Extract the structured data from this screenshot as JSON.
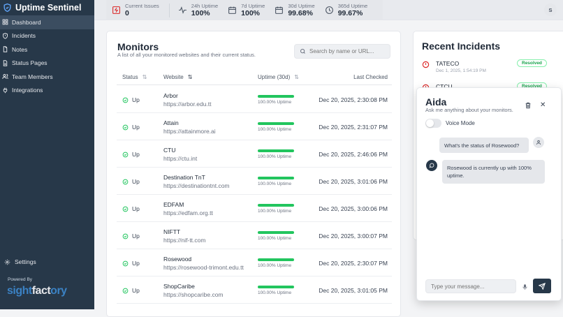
{
  "app": {
    "title": "Uptime Sentinel"
  },
  "sidebar": {
    "items": [
      {
        "label": "Dashboard",
        "icon": "grid-icon",
        "active": true
      },
      {
        "label": "Incidents",
        "icon": "shield-alert-icon"
      },
      {
        "label": "Notes",
        "icon": "file-icon"
      },
      {
        "label": "Status Pages",
        "icon": "file-text-icon"
      },
      {
        "label": "Team Members",
        "icon": "users-icon"
      },
      {
        "label": "Integrations",
        "icon": "plug-icon"
      }
    ],
    "settings": "Settings",
    "powered_by": "Powered By",
    "logo_a": "sight",
    "logo_b": "fact",
    "logo_c": "ory"
  },
  "stats": [
    {
      "label": "Current Issues",
      "value": "0",
      "icon": "alert-icon"
    },
    {
      "label": "24h Uptime",
      "value": "100%",
      "icon": "activity-icon"
    },
    {
      "label": "7d Uptime",
      "value": "100%",
      "icon": "calendar-icon"
    },
    {
      "label": "30d Uptime",
      "value": "99.68%",
      "icon": "calendar-icon"
    },
    {
      "label": "365d Uptime",
      "value": "99.67%",
      "icon": "clock-icon"
    }
  ],
  "user": {
    "initial": "S"
  },
  "monitors": {
    "title": "Monitors",
    "subtitle": "A list of all your monitored websites and their current status.",
    "search_placeholder": "Search by name or URL...",
    "columns": [
      "Status",
      "Website",
      "Uptime (30d)",
      "Last Checked"
    ],
    "sort_glyph": "⇅",
    "rows": [
      {
        "status": "Up",
        "name": "Arbor",
        "url": "https://arbor.edu.tt",
        "uptime": "100.00% Uptime",
        "checked": "Dec 20, 2025, 2:30:08 PM"
      },
      {
        "status": "Up",
        "name": "Attain",
        "url": "https://attainmore.ai",
        "uptime": "100.00% Uptime",
        "checked": "Dec 20, 2025, 2:31:07 PM"
      },
      {
        "status": "Up",
        "name": "CTU",
        "url": "https://ctu.int",
        "uptime": "100.00% Uptime",
        "checked": "Dec 20, 2025, 2:46:06 PM"
      },
      {
        "status": "Up",
        "name": "Destination TnT",
        "url": "https://destinationtnt.com",
        "uptime": "100.00% Uptime",
        "checked": "Dec 20, 2025, 3:01:06 PM"
      },
      {
        "status": "Up",
        "name": "EDFAM",
        "url": "https://edfam.org.tt",
        "uptime": "100.00% Uptime",
        "checked": "Dec 20, 2025, 3:00:06 PM"
      },
      {
        "status": "Up",
        "name": "NIFTT",
        "url": "https://nif-tt.com",
        "uptime": "100.00% Uptime",
        "checked": "Dec 20, 2025, 3:00:07 PM"
      },
      {
        "status": "Up",
        "name": "Rosewood",
        "url": "https://rosewood-trimont.edu.tt",
        "uptime": "100.00% Uptime",
        "checked": "Dec 20, 2025, 2:30:07 PM"
      },
      {
        "status": "Up",
        "name": "ShopCaribe",
        "url": "https://shopcaribe.com",
        "uptime": "100.00% Uptime",
        "checked": "Dec 20, 2025, 3:01:05 PM"
      }
    ]
  },
  "incidents": {
    "title": "Recent Incidents",
    "items": [
      {
        "name": "TATECO",
        "date": "Dec 1, 2025, 1:54:19 PM",
        "badge": "Resolved"
      },
      {
        "name": "CTCU",
        "date": "",
        "badge": "Resolved"
      }
    ]
  },
  "chat": {
    "title": "Aida",
    "subtitle": "Ask me anything about your monitors.",
    "voice_label": "Voice Mode",
    "messages": [
      {
        "role": "user",
        "text": "What's the status of Rosewood?"
      },
      {
        "role": "assistant",
        "text": "Rosewood is currently up with 100% uptime."
      }
    ],
    "input_placeholder": "Type your message...",
    "close_glyph": "✕"
  },
  "colors": {
    "sidebar": "#273849",
    "success": "#22c55e",
    "danger": "#dc2626"
  }
}
